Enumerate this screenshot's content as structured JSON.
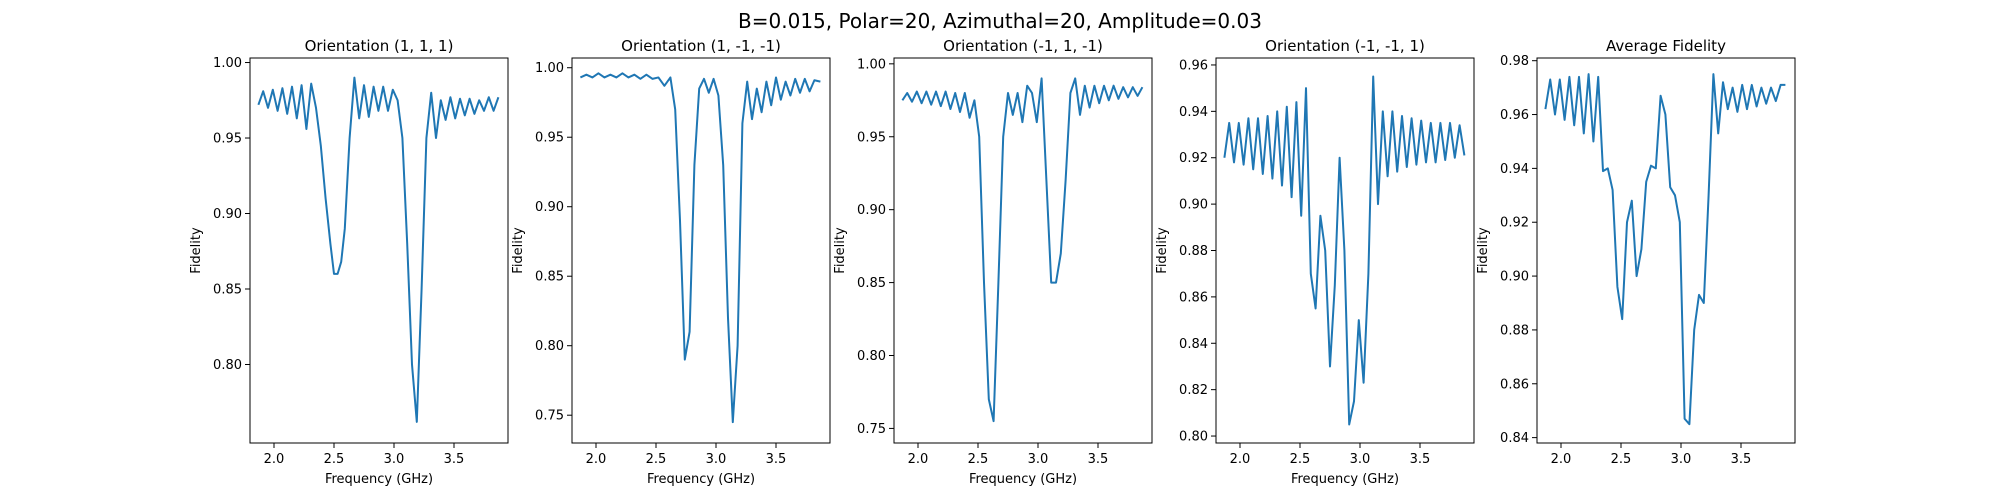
{
  "figure": {
    "suptitle": "B=0.015, Polar=20, Azimuthal=20, Amplitude=0.03"
  },
  "chart_data": [
    {
      "type": "line",
      "title": "Orientation (1, 1, 1)",
      "xlabel": "Frequency (GHz)",
      "ylabel": "Fidelity",
      "xlim": [
        1.8,
        3.95
      ],
      "ylim": [
        0.748,
        1.003
      ],
      "xticks": [
        2.0,
        2.5,
        3.0,
        3.5
      ],
      "yticks": [
        0.8,
        0.85,
        0.9,
        0.95,
        1.0
      ],
      "grid": false,
      "color": "#1f77b4",
      "x": [
        1.87,
        1.91,
        1.95,
        1.99,
        2.03,
        2.07,
        2.11,
        2.15,
        2.19,
        2.23,
        2.27,
        2.31,
        2.35,
        2.39,
        2.43,
        2.47,
        2.5,
        2.53,
        2.56,
        2.59,
        2.63,
        2.67,
        2.71,
        2.75,
        2.79,
        2.83,
        2.87,
        2.91,
        2.95,
        2.99,
        3.03,
        3.07,
        3.11,
        3.15,
        3.19,
        3.23,
        3.27,
        3.31,
        3.35,
        3.39,
        3.43,
        3.47,
        3.51,
        3.55,
        3.59,
        3.63,
        3.67,
        3.71,
        3.75,
        3.79,
        3.83,
        3.87
      ],
      "y": [
        0.972,
        0.981,
        0.97,
        0.982,
        0.968,
        0.983,
        0.966,
        0.984,
        0.963,
        0.985,
        0.956,
        0.986,
        0.97,
        0.945,
        0.91,
        0.88,
        0.86,
        0.86,
        0.868,
        0.89,
        0.95,
        0.99,
        0.963,
        0.985,
        0.964,
        0.984,
        0.968,
        0.984,
        0.968,
        0.982,
        0.975,
        0.95,
        0.88,
        0.8,
        0.762,
        0.85,
        0.95,
        0.98,
        0.95,
        0.975,
        0.962,
        0.977,
        0.963,
        0.976,
        0.965,
        0.976,
        0.966,
        0.975,
        0.968,
        0.977,
        0.968,
        0.977
      ]
    },
    {
      "type": "line",
      "title": "Orientation (1, -1, -1)",
      "xlabel": "Frequency (GHz)",
      "ylabel": "Fidelity",
      "xlim": [
        1.8,
        3.95
      ],
      "ylim": [
        0.73,
        1.007
      ],
      "xticks": [
        2.0,
        2.5,
        3.0,
        3.5
      ],
      "yticks": [
        0.75,
        0.8,
        0.85,
        0.9,
        0.95,
        1.0
      ],
      "grid": false,
      "color": "#1f77b4",
      "x": [
        1.87,
        1.92,
        1.97,
        2.02,
        2.07,
        2.12,
        2.17,
        2.22,
        2.27,
        2.32,
        2.37,
        2.42,
        2.47,
        2.52,
        2.57,
        2.62,
        2.66,
        2.7,
        2.74,
        2.78,
        2.82,
        2.86,
        2.9,
        2.94,
        2.98,
        3.02,
        3.06,
        3.1,
        3.14,
        3.18,
        3.22,
        3.26,
        3.3,
        3.34,
        3.38,
        3.42,
        3.46,
        3.5,
        3.54,
        3.58,
        3.62,
        3.66,
        3.7,
        3.74,
        3.78,
        3.82,
        3.87
      ],
      "y": [
        0.993,
        0.995,
        0.993,
        0.996,
        0.993,
        0.995,
        0.993,
        0.996,
        0.993,
        0.995,
        0.992,
        0.995,
        0.992,
        0.993,
        0.987,
        0.993,
        0.97,
        0.89,
        0.79,
        0.81,
        0.93,
        0.985,
        0.992,
        0.982,
        0.992,
        0.98,
        0.93,
        0.82,
        0.745,
        0.8,
        0.96,
        0.99,
        0.963,
        0.985,
        0.968,
        0.99,
        0.973,
        0.993,
        0.977,
        0.99,
        0.98,
        0.992,
        0.982,
        0.992,
        0.983,
        0.991,
        0.99
      ]
    },
    {
      "type": "line",
      "title": "Orientation (-1, 1, -1)",
      "xlabel": "Frequency (GHz)",
      "ylabel": "Fidelity",
      "xlim": [
        1.8,
        3.95
      ],
      "ylim": [
        0.74,
        1.004
      ],
      "xticks": [
        2.0,
        2.5,
        3.0,
        3.5
      ],
      "yticks": [
        0.75,
        0.8,
        0.85,
        0.9,
        0.95,
        1.0
      ],
      "grid": false,
      "color": "#1f77b4",
      "x": [
        1.87,
        1.91,
        1.95,
        1.99,
        2.03,
        2.07,
        2.11,
        2.15,
        2.19,
        2.23,
        2.27,
        2.31,
        2.35,
        2.39,
        2.43,
        2.47,
        2.51,
        2.55,
        2.59,
        2.63,
        2.67,
        2.71,
        2.75,
        2.79,
        2.83,
        2.87,
        2.91,
        2.95,
        2.99,
        3.03,
        3.07,
        3.11,
        3.15,
        3.19,
        3.23,
        3.27,
        3.31,
        3.35,
        3.39,
        3.43,
        3.47,
        3.51,
        3.55,
        3.59,
        3.63,
        3.67,
        3.71,
        3.75,
        3.79,
        3.83,
        3.87
      ],
      "y": [
        0.975,
        0.98,
        0.974,
        0.981,
        0.973,
        0.981,
        0.972,
        0.981,
        0.971,
        0.981,
        0.969,
        0.98,
        0.967,
        0.98,
        0.963,
        0.975,
        0.95,
        0.85,
        0.77,
        0.755,
        0.85,
        0.95,
        0.98,
        0.965,
        0.98,
        0.96,
        0.985,
        0.98,
        0.96,
        0.99,
        0.92,
        0.85,
        0.85,
        0.87,
        0.92,
        0.98,
        0.99,
        0.965,
        0.985,
        0.97,
        0.985,
        0.973,
        0.985,
        0.975,
        0.985,
        0.976,
        0.984,
        0.977,
        0.984,
        0.978,
        0.984
      ]
    },
    {
      "type": "line",
      "title": "Orientation (-1, -1, 1)",
      "xlabel": "Frequency (GHz)",
      "ylabel": "Fidelity",
      "xlim": [
        1.8,
        3.95
      ],
      "ylim": [
        0.797,
        0.963
      ],
      "xticks": [
        2.0,
        2.5,
        3.0,
        3.5
      ],
      "yticks": [
        0.8,
        0.82,
        0.84,
        0.86,
        0.88,
        0.9,
        0.92,
        0.94,
        0.96
      ],
      "grid": false,
      "color": "#1f77b4",
      "x": [
        1.87,
        1.91,
        1.95,
        1.99,
        2.03,
        2.07,
        2.11,
        2.15,
        2.19,
        2.23,
        2.27,
        2.31,
        2.35,
        2.39,
        2.43,
        2.47,
        2.51,
        2.55,
        2.59,
        2.63,
        2.67,
        2.71,
        2.75,
        2.79,
        2.83,
        2.87,
        2.91,
        2.95,
        2.99,
        3.03,
        3.07,
        3.11,
        3.15,
        3.19,
        3.23,
        3.27,
        3.31,
        3.35,
        3.39,
        3.43,
        3.47,
        3.51,
        3.55,
        3.59,
        3.63,
        3.67,
        3.71,
        3.75,
        3.79,
        3.83,
        3.87
      ],
      "y": [
        0.92,
        0.935,
        0.918,
        0.935,
        0.917,
        0.937,
        0.915,
        0.937,
        0.913,
        0.938,
        0.911,
        0.94,
        0.908,
        0.942,
        0.903,
        0.944,
        0.895,
        0.95,
        0.87,
        0.855,
        0.895,
        0.88,
        0.83,
        0.865,
        0.92,
        0.88,
        0.805,
        0.815,
        0.85,
        0.823,
        0.87,
        0.955,
        0.9,
        0.94,
        0.912,
        0.94,
        0.914,
        0.938,
        0.916,
        0.937,
        0.917,
        0.936,
        0.918,
        0.935,
        0.918,
        0.935,
        0.919,
        0.935,
        0.92,
        0.934,
        0.921
      ]
    },
    {
      "type": "line",
      "title": "Average Fidelity",
      "xlabel": "",
      "ylabel": "Fidelity",
      "xlim": [
        1.8,
        3.95
      ],
      "ylim": [
        0.838,
        0.981
      ],
      "xticks": [
        2.0,
        2.5,
        3.0,
        3.5
      ],
      "yticks": [
        0.84,
        0.86,
        0.88,
        0.9,
        0.92,
        0.94,
        0.96,
        0.98
      ],
      "grid": false,
      "color": "#1f77b4",
      "x": [
        1.87,
        1.91,
        1.95,
        1.99,
        2.03,
        2.07,
        2.11,
        2.15,
        2.19,
        2.23,
        2.27,
        2.31,
        2.35,
        2.39,
        2.43,
        2.47,
        2.51,
        2.55,
        2.59,
        2.63,
        2.67,
        2.71,
        2.75,
        2.79,
        2.83,
        2.87,
        2.91,
        2.95,
        2.99,
        3.03,
        3.07,
        3.11,
        3.15,
        3.19,
        3.23,
        3.27,
        3.31,
        3.35,
        3.39,
        3.43,
        3.47,
        3.51,
        3.55,
        3.59,
        3.63,
        3.67,
        3.71,
        3.75,
        3.79,
        3.83,
        3.87
      ],
      "y": [
        0.962,
        0.973,
        0.96,
        0.973,
        0.958,
        0.974,
        0.956,
        0.974,
        0.953,
        0.975,
        0.95,
        0.974,
        0.939,
        0.94,
        0.932,
        0.896,
        0.884,
        0.92,
        0.928,
        0.9,
        0.91,
        0.935,
        0.941,
        0.94,
        0.967,
        0.96,
        0.933,
        0.93,
        0.92,
        0.847,
        0.845,
        0.88,
        0.893,
        0.89,
        0.93,
        0.975,
        0.953,
        0.972,
        0.962,
        0.97,
        0.961,
        0.971,
        0.962,
        0.971,
        0.963,
        0.97,
        0.964,
        0.97,
        0.965,
        0.971,
        0.971
      ]
    }
  ]
}
